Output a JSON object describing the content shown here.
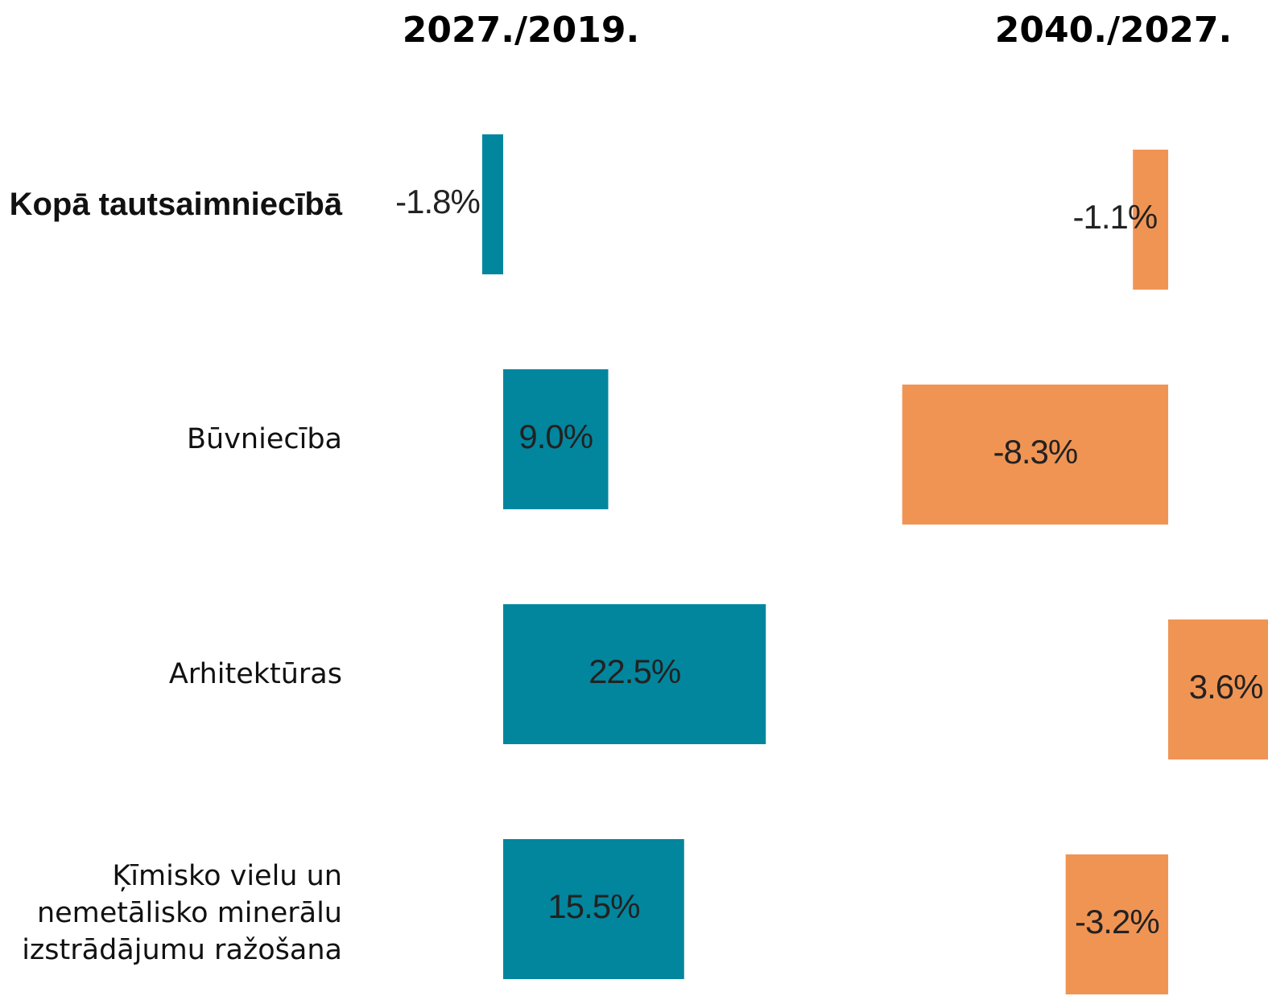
{
  "chart_data": {
    "type": "hbar",
    "categories": [
      "Kopā tautsaimniecībā",
      "Būvniecība",
      "Arhitektūras",
      "Ķīmisko vielu un nemetālisko minerālu izstrādājumu ražošana"
    ],
    "series": [
      {
        "name": "2027./2019.",
        "color": "#02869e",
        "values": [
          -1.8,
          9.0,
          22.5,
          15.5
        ],
        "value_labels": [
          "-1.8%",
          "9.0%",
          "22.5%",
          "15.5%"
        ]
      },
      {
        "name": "2040./2027.",
        "color": "#f09454",
        "values": [
          -1.1,
          -8.3,
          3.6,
          -3.2
        ],
        "value_labels": [
          "-1.1%",
          "-8.3%",
          "3.6%",
          "-3.2%"
        ]
      }
    ]
  }
}
